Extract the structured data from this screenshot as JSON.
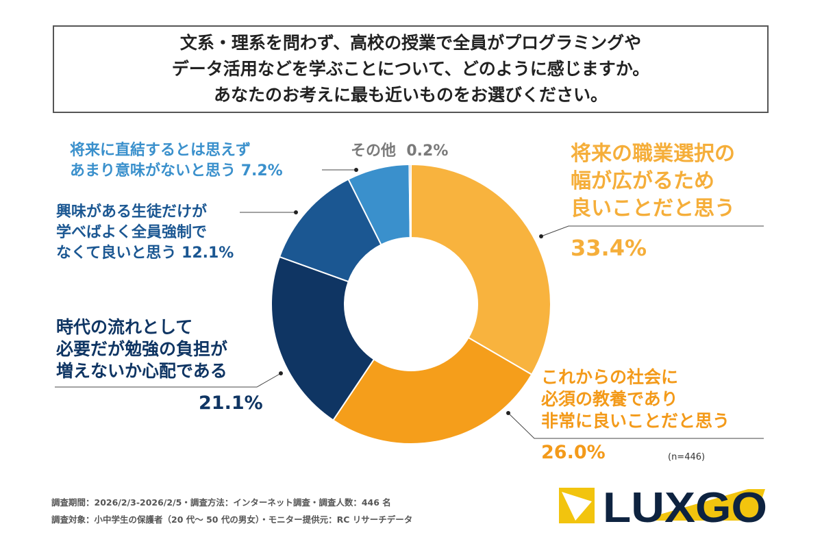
{
  "chart_data": {
    "type": "pie",
    "subtype": "donut",
    "title": [
      "文系・理系を問わず、高校の授業で全員がプログラミングや",
      "データ活用などを学ぶことについて、どのように感じますか。",
      "あなたのお考えに最も近いものをお選びください。"
    ],
    "slices": [
      {
        "label": [
          "将来の職業選択の",
          "幅が広がるため",
          "良いことだと思う"
        ],
        "value": 33.4,
        "pct_text": "33.4%",
        "color": "#F8B33E",
        "text_color": "#F5AE3A"
      },
      {
        "label": [
          "これからの社会に",
          "必須の教養であり",
          "非常に良いことだと思う"
        ],
        "value": 26.0,
        "pct_text": "26.0%",
        "color": "#F59E1B",
        "text_color": "#F39A1A"
      },
      {
        "label": [
          "時代の流れとして",
          "必要だが勉強の負担が",
          "増えないか心配である"
        ],
        "value": 21.1,
        "pct_text": "21.1%",
        "color": "#0F3563",
        "text_color": "#0F3563"
      },
      {
        "label": [
          "興味がある生徒だけが",
          "学べばよく全員強制で",
          "なくて良いと思う"
        ],
        "value": 12.1,
        "pct_text": "12.1%",
        "color": "#1B5792",
        "text_color": "#1B5792"
      },
      {
        "label": [
          "将来に直結するとは思えず",
          "あまり意味がないと思う"
        ],
        "value": 7.2,
        "pct_text": "7.2%",
        "color": "#3A90CC",
        "text_color": "#3A90CC"
      },
      {
        "label": [
          "その他"
        ],
        "value": 0.2,
        "pct_text": "0.2%",
        "color": "#999999",
        "text_color": "#7a7a7a"
      }
    ],
    "n": "(n=446)"
  },
  "footer": [
    "調査期間：2026/2/3-2026/2/5・調査方法：インターネット調査・調査人数：446 名",
    "調査対象：小中学生の保護者（20 代～ 50 代の男女）・モニター提供元：RC リサーチデータ"
  ],
  "logo": "LUXGO"
}
